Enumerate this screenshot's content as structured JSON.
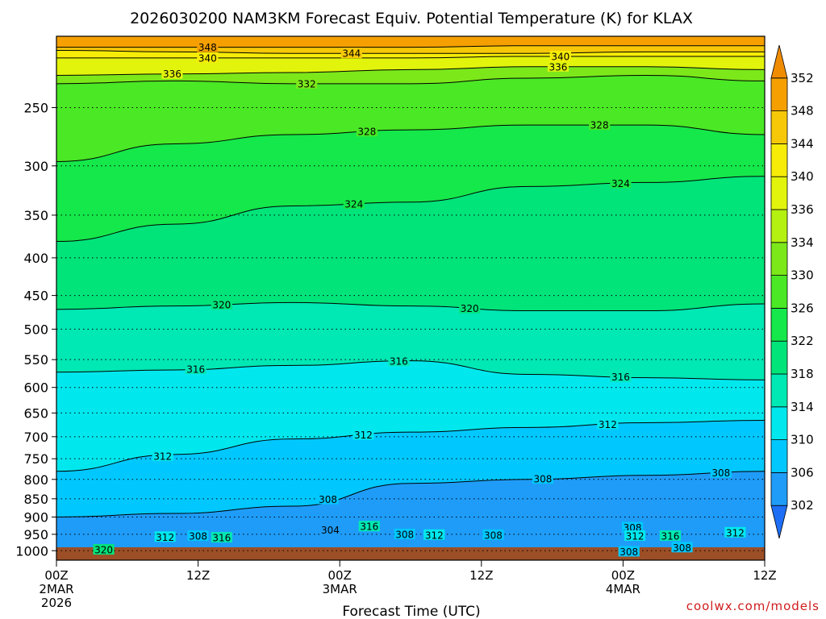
{
  "chart_data": {
    "type": "heatmap",
    "title": "2026030200 NAM3KM Forecast Equiv. Potential Temperature (K) for KLAX",
    "xlabel": "Forecast Time (UTC)",
    "ylabel": "",
    "x_ticks": [
      {
        "hour": 0,
        "lines": [
          "00Z",
          "2MAR",
          "2026"
        ]
      },
      {
        "hour": 12,
        "lines": [
          "12Z"
        ]
      },
      {
        "hour": 24,
        "lines": [
          "00Z",
          "3MAR"
        ]
      },
      {
        "hour": 36,
        "lines": [
          "12Z"
        ]
      },
      {
        "hour": 48,
        "lines": [
          "00Z",
          "4MAR"
        ]
      },
      {
        "hour": 60,
        "lines": [
          "12Z"
        ]
      }
    ],
    "xlim_hours": [
      0,
      60
    ],
    "y_scale": "log-pressure",
    "ylim_hPa": [
      1030,
      200
    ],
    "y_ticks": [
      250,
      300,
      350,
      400,
      450,
      500,
      550,
      600,
      650,
      700,
      750,
      800,
      850,
      900,
      950,
      1000
    ],
    "colorbar": {
      "levels": [
        300,
        302,
        306,
        310,
        314,
        318,
        322,
        326,
        330,
        334,
        336,
        340,
        344,
        348,
        352,
        356
      ],
      "tick_labels": [
        "302",
        "306",
        "310",
        "314",
        "318",
        "322",
        "326",
        "330",
        "334",
        "336",
        "340",
        "344",
        "348",
        "352"
      ],
      "colors": [
        "#1e6ff5",
        "#1f9cf8",
        "#00c8ff",
        "#00e8ee",
        "#00e8b4",
        "#00e47a",
        "#15e84a",
        "#4ae825",
        "#7ce81a",
        "#b4f010",
        "#e2f40c",
        "#f6ec08",
        "#f6c808",
        "#f5a000",
        "#f08c00"
      ]
    },
    "contours": [
      {
        "value": 348,
        "hPa": [
          207,
          207,
          207,
          207,
          206,
          206,
          206
        ],
        "label_hours": [
          12.8
        ]
      },
      {
        "value": 344,
        "hPa": [
          209,
          210,
          211,
          211,
          211,
          210,
          210
        ],
        "label_hours": [
          25.0
        ]
      },
      {
        "value": 340,
        "hPa": [
          214,
          214,
          214,
          214,
          213,
          213,
          213
        ],
        "label_hours": [
          12.8,
          42.7
        ]
      },
      {
        "value": 336,
        "hPa": [
          226,
          225,
          224,
          222,
          220,
          220,
          222
        ],
        "label_hours": [
          9.8,
          42.5
        ]
      },
      {
        "value": 332,
        "hPa": [
          232,
          230,
          232,
          232,
          228,
          226,
          230
        ],
        "label_hours": [
          21.2
        ]
      },
      {
        "value": 328,
        "hPa": [
          296,
          280,
          272,
          268,
          264,
          264,
          272
        ],
        "label_hours": [
          26.3,
          46.0
        ]
      },
      {
        "value": 324,
        "hPa": [
          380,
          360,
          340,
          336,
          320,
          316,
          310
        ],
        "label_hours": [
          25.2,
          47.8
        ]
      },
      {
        "value": 320,
        "hPa": [
          470,
          465,
          460,
          465,
          472,
          472,
          462
        ],
        "label_hours": [
          14.0,
          35.0
        ]
      },
      {
        "value": 316,
        "hPa": [
          572,
          568,
          560,
          552,
          576,
          582,
          586
        ],
        "label_hours": [
          11.8,
          29.0,
          47.8
        ]
      },
      {
        "value": 312,
        "hPa": [
          780,
          740,
          705,
          690,
          680,
          670,
          665
        ],
        "label_hours": [
          9.0,
          26.0,
          46.7
        ]
      },
      {
        "value": 308,
        "hPa": [
          900,
          890,
          870,
          810,
          800,
          790,
          780
        ],
        "label_hours": [
          23.0,
          41.2,
          56.3
        ]
      }
    ],
    "low_level_labels": [
      {
        "value": 320,
        "hour": 4.0,
        "hPa": 997
      },
      {
        "value": 312,
        "hour": 9.2,
        "hPa": 958
      },
      {
        "value": 308,
        "hour": 12.0,
        "hPa": 955
      },
      {
        "value": 316,
        "hour": 14.0,
        "hPa": 960
      },
      {
        "value": 304,
        "hour": 23.2,
        "hPa": 937
      },
      {
        "value": 316,
        "hour": 26.5,
        "hPa": 927
      },
      {
        "value": 308,
        "hour": 29.5,
        "hPa": 950
      },
      {
        "value": 312,
        "hour": 32.0,
        "hPa": 952
      },
      {
        "value": 308,
        "hour": 37.0,
        "hPa": 952
      },
      {
        "value": 308,
        "hour": 48.8,
        "hPa": 930
      },
      {
        "value": 312,
        "hour": 49.0,
        "hPa": 955
      },
      {
        "value": 316,
        "hour": 52.0,
        "hPa": 955
      },
      {
        "value": 308,
        "hour": 48.5,
        "hPa": 1003
      },
      {
        "value": 308,
        "hour": 53.0,
        "hPa": 990
      },
      {
        "value": 312,
        "hour": 57.5,
        "hPa": 945
      }
    ],
    "grid": "dotted-horizontal",
    "legend": "right"
  },
  "credit": "coolwx.com/models"
}
